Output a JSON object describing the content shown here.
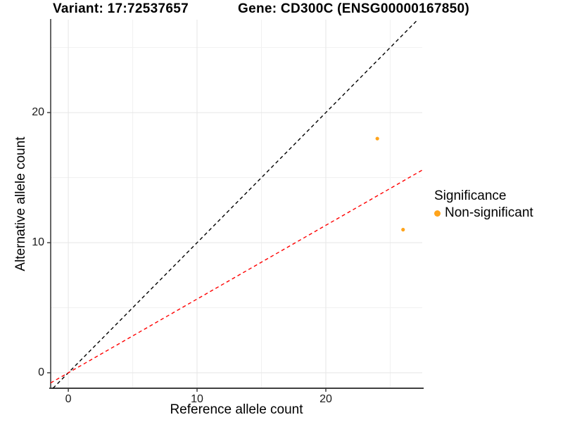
{
  "titles": {
    "left": "Variant: 17:72537657",
    "right": "Gene: CD300C (ENSG00000167850)"
  },
  "axes": {
    "x_label": "Reference allele count",
    "y_label": "Alternative allele count"
  },
  "legend": {
    "title": "Significance",
    "items": [
      {
        "label": "Non-significant",
        "color": "#FFA41B"
      }
    ]
  },
  "colors": {
    "background": "#ffffff",
    "grid_major": "#e6e6e6",
    "grid_minor": "#f1f1f1",
    "axis_line": "#3f3f3f",
    "tick_mark": "#333333",
    "identity_line": "#000000",
    "expected_line": "#ff0000",
    "point": "#FFA41B"
  },
  "chart_data": {
    "type": "scatter",
    "title_left": "Variant: 17:72537657",
    "title_right": "Gene: CD300C (ENSG00000167850)",
    "xlabel": "Reference allele count",
    "ylabel": "Alternative allele count",
    "xlim": [
      -1.37,
      27.49
    ],
    "ylim": [
      -1.19,
      27.14
    ],
    "x_ticks": [
      0,
      10,
      20
    ],
    "y_ticks": [
      0,
      10,
      20
    ],
    "x_minor_gridlines": [
      5,
      15,
      25
    ],
    "y_minor_gridlines": [
      5,
      15,
      25
    ],
    "grid": "major and minor, light gray on white",
    "legend_position": "right",
    "series": [
      {
        "name": "Non-significant",
        "color": "#FFA41B",
        "points": [
          {
            "x": 24,
            "y": 18
          },
          {
            "x": 26,
            "y": 11
          }
        ]
      }
    ],
    "lines": [
      {
        "name": "identity y = x",
        "color": "#000000",
        "dash": "dashed",
        "from": {
          "x": -1.19,
          "y": -1.19
        },
        "to": {
          "x": 27.14,
          "y": 27.14
        }
      },
      {
        "name": "expected ratio y = 0.567x",
        "color": "#ff0000",
        "dash": "dashed",
        "from": {
          "x": -1.37,
          "y": -0.78
        },
        "to": {
          "x": 27.49,
          "y": 15.58
        }
      }
    ]
  }
}
